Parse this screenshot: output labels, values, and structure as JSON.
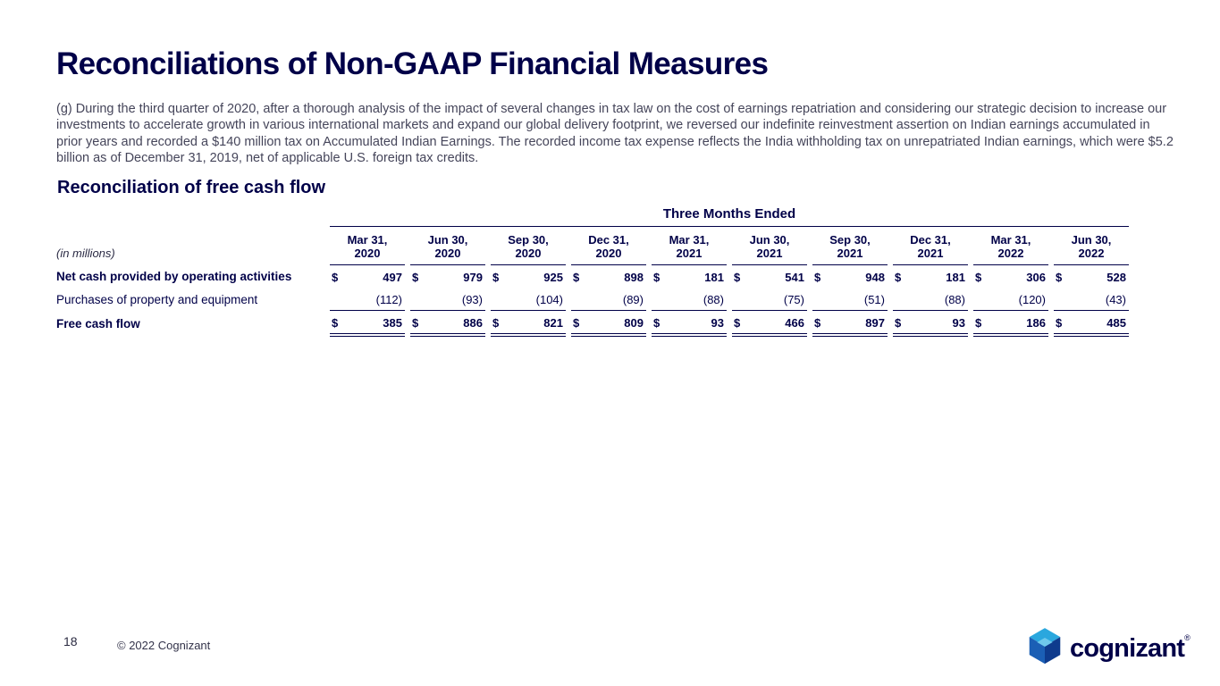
{
  "colors": {
    "navy": "#000048",
    "body_text": "#45455A"
  },
  "title": "Reconciliations of Non-GAAP Financial Measures",
  "footnote": "(g) During the third quarter of 2020, after a thorough analysis of the impact of several changes in tax law on the cost of earnings repatriation and considering our strategic decision to increase our investments to accelerate growth in various international markets and expand our global delivery footprint, we reversed our indefinite reinvestment assertion on Indian earnings accumulated in prior years and recorded a $140 million tax on Accumulated Indian Earnings. The recorded income tax expense reflects the India withholding tax on unrepatriated Indian earnings, which were $5.2 billion as of December 31, 2019, net of applicable U.S. foreign tax credits.",
  "section_title": "Reconciliation of free cash flow",
  "table": {
    "group_header": "Three Months Ended",
    "units_note": "(in millions)",
    "columns": [
      "Mar 31,\n2020",
      "Jun 30,\n2020",
      "Sep 30,\n2020",
      "Dec 31,\n2020",
      "Mar 31,\n2021",
      "Jun 30,\n2021",
      "Sep 30,\n2021",
      "Dec 31,\n2021",
      "Mar 31,\n2022",
      "Jun 30,\n2022"
    ],
    "rows": [
      {
        "label": "Net cash provided by operating activities",
        "bold": true,
        "currency_symbol": "$",
        "values": [
          "497",
          "979",
          "925",
          "898",
          "181",
          "541",
          "948",
          "181",
          "306",
          "528"
        ],
        "rule_below": "none"
      },
      {
        "label": "Purchases of property and equipment",
        "bold": false,
        "currency_symbol": "",
        "values": [
          "(112)",
          "(93)",
          "(104)",
          "(89)",
          "(88)",
          "(75)",
          "(51)",
          "(88)",
          "(120)",
          "(43)"
        ],
        "rule_below": "single"
      },
      {
        "label": "Free cash flow",
        "bold": true,
        "currency_symbol": "$",
        "values": [
          "385",
          "886",
          "821",
          "809",
          "93",
          "466",
          "897",
          "93",
          "186",
          "485"
        ],
        "rule_below": "double"
      }
    ]
  },
  "footer": {
    "page_number": "18",
    "copyright": "© 2022 Cognizant",
    "logo_text": "cognizant",
    "logo_registered": "®"
  }
}
